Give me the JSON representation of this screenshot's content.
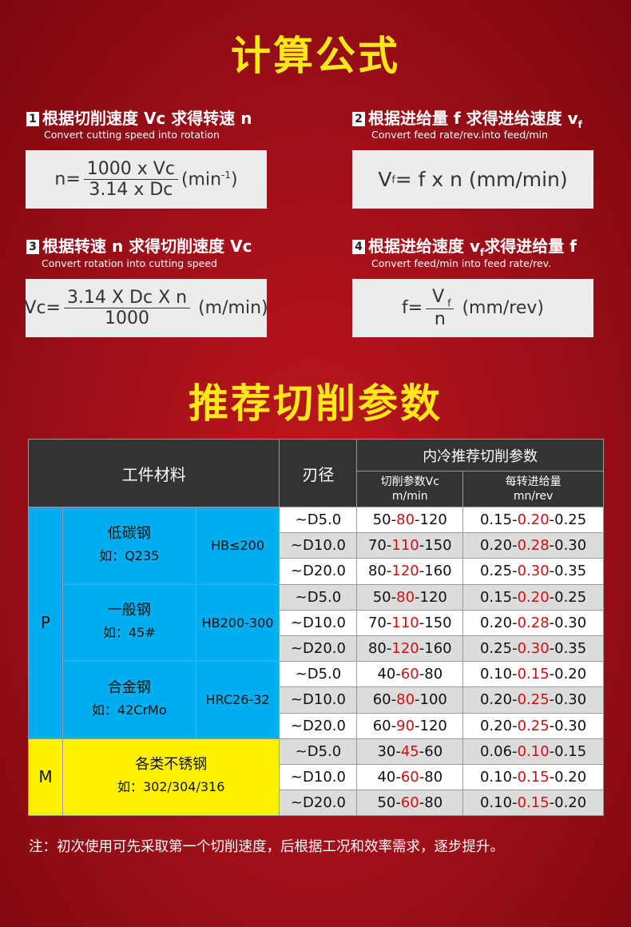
{
  "title1": "计算公式",
  "formulas": [
    {
      "num": "1",
      "title": "根据切削速度 Vc 求得转速 n",
      "subtitle": "Convert cutting speed into rotation",
      "lhs": "n=",
      "numerator": "1000 x  Vc",
      "denominator": "3.14 x Dc",
      "unit": "(min",
      "unit_sup": "-1",
      "unit_end": ")"
    },
    {
      "num": "2",
      "title": "根据进给量 f 求得进给速度 v",
      "title_sub": "f",
      "subtitle": "Convert feed rate/rev.into feed/min",
      "lhs": "V",
      "lhs_sub": "f",
      "expr": "= f x n (mm/min)"
    },
    {
      "num": "3",
      "title": "根据转速 n 求得切削速度 Vc",
      "subtitle": "Convert rotation into cutting speed",
      "lhs": "Vc=",
      "numerator": "3.14 X Dc X n",
      "denominator": "1000",
      "unit": "(m/min)"
    },
    {
      "num": "4",
      "title": "根据进给速度 v",
      "title_sub": "f",
      "title_end": "求得进给量 f",
      "subtitle": "Convert feed/min into feed rate/rev.",
      "lhs": "f=",
      "numerator": "V",
      "numerator_sub": "f",
      "denominator": "n",
      "unit": "(mm/rev)"
    }
  ],
  "title2": "推荐切削参数",
  "table": {
    "h_material": "工件材料",
    "h_diameter": "刃径",
    "h_group": "内冷推荐切削参数",
    "h_vc": "切削参数Vc",
    "h_vc_unit": "m/min",
    "h_f": "每转进给量",
    "h_f_unit": "mn/rev",
    "groups": [
      {
        "class": "P",
        "materials": [
          {
            "name": "低碳钢",
            "example": "如：Q235",
            "hardness": "HB≤200",
            "rows": [
              [
                "~D5.0",
                [
                  "50-",
                  "80",
                  "-120"
                ],
                [
                  "0.15-",
                  "0.20",
                  "-0.25"
                ]
              ],
              [
                "~D10.0",
                [
                  "70-",
                  "110",
                  "-150"
                ],
                [
                  "0.20-",
                  "0.28",
                  "-0.30"
                ]
              ],
              [
                "~D20.0",
                [
                  "80-",
                  "120",
                  "-160"
                ],
                [
                  "0.25-",
                  "0.30",
                  "-0.35"
                ]
              ]
            ]
          },
          {
            "name": "一般钢",
            "example": "如：45#",
            "hardness": "HB200-300",
            "rows": [
              [
                "~D5.0",
                [
                  "50-",
                  "80",
                  "-120"
                ],
                [
                  "0.15-",
                  "0.20",
                  "-0.25"
                ]
              ],
              [
                "~D10.0",
                [
                  "70-",
                  "110",
                  "-150"
                ],
                [
                  "0.20-",
                  "0.28",
                  "-0.30"
                ]
              ],
              [
                "~D20.0",
                [
                  "80-",
                  "120",
                  "-160"
                ],
                [
                  "0.25-",
                  "0.30",
                  "-0.35"
                ]
              ]
            ]
          },
          {
            "name": "合金钢",
            "example": "如：42CrMo",
            "hardness": "HRC26-32",
            "rows": [
              [
                "~D5.0",
                [
                  "40-",
                  "60",
                  "-80"
                ],
                [
                  "0.10-",
                  "0.15",
                  "-0.20"
                ]
              ],
              [
                "~D10.0",
                [
                  "60-",
                  "80",
                  "-100"
                ],
                [
                  "0.20-",
                  "0.25",
                  "-0.30"
                ]
              ],
              [
                "~D20.0",
                [
                  "60-",
                  "90",
                  "-120"
                ],
                [
                  "0.20-",
                  "0.25",
                  "-0.30"
                ]
              ]
            ]
          }
        ]
      },
      {
        "class": "M",
        "materials": [
          {
            "name": "各类不锈钢",
            "example": "如：302/304/316",
            "hardness": "",
            "rows": [
              [
                "~D5.0",
                [
                  "30-",
                  "45",
                  "-60"
                ],
                [
                  "0.06-",
                  "0.10",
                  "-0.15"
                ]
              ],
              [
                "~D10.0",
                [
                  "40-",
                  "60",
                  "-80"
                ],
                [
                  "0.10-",
                  "0.15",
                  "-0.20"
                ]
              ],
              [
                "~D20.0",
                [
                  "50-",
                  "60",
                  "-80"
                ],
                [
                  "0.10-",
                  "0.15",
                  "-0.20"
                ]
              ]
            ]
          }
        ]
      }
    ]
  },
  "note": "注：初次使用可先采取第一个切削速度，后根据工况和效率需求，逐步提升。",
  "colors": {
    "title": "#ffe81a",
    "P": "#00aeef",
    "M": "#fff200",
    "highlight": "#d01010",
    "header": "#333333"
  }
}
